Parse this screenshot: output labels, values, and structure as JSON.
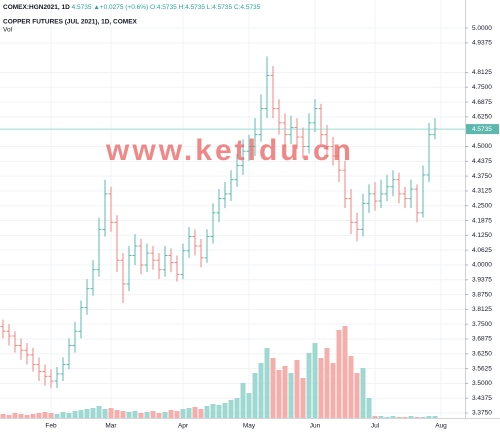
{
  "chart_data": {
    "type": "ohlc",
    "symbol": "COMEX:HGN2021, 1D",
    "last_text": "4.5735",
    "change_text": "▲+0.0275 (+0.6%)",
    "ohlc_text": [
      "O:4.5735",
      "H:4.5735",
      "L:4.5735",
      "C:4.5735"
    ],
    "title": "COPPER FUTURES (JUL 2021), 1D, COMEX",
    "subtitle": "Vol",
    "watermark": "www.ketldu.cn",
    "categories": [
      null,
      null,
      null,
      null,
      null,
      null,
      null,
      null,
      "Feb",
      null,
      null,
      null,
      null,
      null,
      null,
      null,
      null,
      null,
      "Mar",
      null,
      null,
      null,
      null,
      null,
      null,
      null,
      null,
      null,
      null,
      null,
      "Apr",
      null,
      null,
      null,
      null,
      null,
      null,
      null,
      null,
      null,
      null,
      "May",
      null,
      null,
      null,
      null,
      null,
      null,
      null,
      null,
      null,
      null,
      "Jun",
      null,
      null,
      null,
      null,
      null,
      null,
      null,
      null,
      null,
      "Jul",
      null,
      null,
      null,
      null,
      null,
      null,
      null,
      null,
      null,
      null,
      "Aug"
    ],
    "open": [
      3.74,
      3.72,
      3.7,
      3.66,
      3.64,
      3.62,
      3.58,
      3.55,
      3.53,
      3.51,
      3.54,
      3.58,
      3.66,
      3.72,
      3.82,
      3.9,
      3.98,
      4.15,
      4.3,
      4.18,
      4.02,
      3.92,
      4.04,
      4.08,
      4.0,
      4.05,
      4.02,
      3.98,
      4.04,
      4.01,
      3.96,
      4.06,
      4.12,
      4.08,
      4.03,
      4.12,
      4.22,
      4.28,
      4.3,
      4.36,
      4.42,
      4.48,
      4.5,
      4.55,
      4.66,
      4.8,
      4.66,
      4.6,
      4.55,
      4.58,
      4.54,
      4.5,
      4.6,
      4.66,
      4.55,
      4.5,
      4.46,
      4.4,
      4.28,
      4.18,
      4.15,
      4.26,
      4.3,
      4.27,
      4.3,
      4.33,
      4.36,
      4.3,
      4.28,
      4.32,
      4.22,
      4.38,
      4.55,
      null
    ],
    "high": [
      3.77,
      3.75,
      3.72,
      3.69,
      3.67,
      3.65,
      3.61,
      3.58,
      3.56,
      3.57,
      3.61,
      3.69,
      3.76,
      3.85,
      3.94,
      4.02,
      4.2,
      4.36,
      4.33,
      4.21,
      4.05,
      4.08,
      4.13,
      4.11,
      4.09,
      4.08,
      4.05,
      4.08,
      4.07,
      4.04,
      4.09,
      4.16,
      4.15,
      4.11,
      4.15,
      4.26,
      4.32,
      4.35,
      4.4,
      4.47,
      4.53,
      4.55,
      4.62,
      4.72,
      4.88,
      4.84,
      4.7,
      4.64,
      4.63,
      4.62,
      4.58,
      4.64,
      4.7,
      4.68,
      4.59,
      4.54,
      4.5,
      4.44,
      4.32,
      4.22,
      4.3,
      4.34,
      4.35,
      4.36,
      4.38,
      4.4,
      4.39,
      4.33,
      4.36,
      4.34,
      4.42,
      4.6,
      4.62,
      null
    ],
    "low": [
      3.69,
      3.66,
      3.63,
      3.6,
      3.58,
      3.55,
      3.51,
      3.49,
      3.48,
      3.48,
      3.51,
      3.56,
      3.63,
      3.69,
      3.79,
      3.87,
      3.95,
      4.12,
      4.14,
      3.97,
      3.84,
      3.89,
      4.0,
      3.96,
      3.97,
      3.98,
      3.94,
      3.95,
      3.97,
      3.93,
      3.94,
      4.03,
      4.04,
      3.99,
      4.01,
      4.09,
      4.18,
      4.24,
      4.27,
      4.33,
      4.38,
      4.44,
      4.46,
      4.52,
      4.62,
      4.62,
      4.55,
      4.5,
      4.51,
      4.49,
      4.45,
      4.47,
      4.56,
      4.51,
      4.46,
      4.42,
      4.35,
      4.24,
      4.13,
      4.1,
      4.12,
      4.22,
      4.23,
      4.24,
      4.27,
      4.29,
      4.26,
      4.24,
      4.24,
      4.18,
      4.2,
      4.35,
      4.53,
      null
    ],
    "close": [
      3.72,
      3.7,
      3.66,
      3.64,
      3.62,
      3.58,
      3.55,
      3.53,
      3.51,
      3.54,
      3.58,
      3.66,
      3.72,
      3.82,
      3.9,
      3.98,
      4.15,
      4.3,
      4.18,
      4.02,
      3.92,
      4.04,
      4.08,
      4.0,
      4.05,
      4.02,
      3.98,
      4.04,
      4.01,
      3.96,
      4.06,
      4.12,
      4.08,
      4.03,
      4.12,
      4.22,
      4.28,
      4.3,
      4.36,
      4.42,
      4.48,
      4.5,
      4.55,
      4.66,
      4.8,
      4.66,
      4.6,
      4.55,
      4.58,
      4.54,
      4.5,
      4.6,
      4.66,
      4.55,
      4.5,
      4.46,
      4.4,
      4.28,
      4.18,
      4.15,
      4.26,
      4.3,
      4.27,
      4.3,
      4.33,
      4.36,
      4.3,
      4.28,
      4.32,
      4.22,
      4.38,
      4.55,
      4.5735,
      null
    ],
    "volume": [
      4,
      3,
      5,
      4,
      3,
      4,
      5,
      6,
      5,
      4,
      6,
      5,
      7,
      8,
      9,
      10,
      12,
      9,
      10,
      8,
      7,
      6,
      7,
      5,
      6,
      7,
      5,
      6,
      8,
      7,
      9,
      10,
      11,
      9,
      12,
      14,
      13,
      15,
      18,
      20,
      35,
      25,
      45,
      55,
      70,
      60,
      48,
      52,
      45,
      58,
      40,
      65,
      75,
      60,
      70,
      55,
      88,
      92,
      62,
      45,
      50,
      20,
      2,
      2,
      1,
      2,
      1,
      1,
      2,
      1,
      1,
      2,
      2,
      null
    ],
    "vlim": [
      0,
      100
    ],
    "ylim": [
      3.354,
      5.034
    ],
    "yticks": [
      {
        "value": 5.0,
        "label": "5.0000"
      },
      {
        "value": 4.9375,
        "label": "4.9375"
      },
      {
        "value": 4.8125,
        "label": "4.8125"
      },
      {
        "value": 4.75,
        "label": "4.7500"
      },
      {
        "value": 4.6875,
        "label": "4.6875"
      },
      {
        "value": 4.625,
        "label": "4.6250"
      },
      {
        "value": 4.5,
        "label": "4.5000"
      },
      {
        "value": 4.4375,
        "label": "4.4375"
      },
      {
        "value": 4.375,
        "label": "4.3750"
      },
      {
        "value": 4.3125,
        "label": "4.3125"
      },
      {
        "value": 4.25,
        "label": "4.2500"
      },
      {
        "value": 4.1875,
        "label": "4.1875"
      },
      {
        "value": 4.125,
        "label": "4.1250"
      },
      {
        "value": 4.0625,
        "label": "4.0625"
      },
      {
        "value": 4.0,
        "label": "4.0000"
      },
      {
        "value": 3.9375,
        "label": "3.9375"
      },
      {
        "value": 3.875,
        "label": "3.8750"
      },
      {
        "value": 3.8125,
        "label": "3.8125"
      },
      {
        "value": 3.75,
        "label": "3.7500"
      },
      {
        "value": 3.6875,
        "label": "3.6875"
      },
      {
        "value": 3.625,
        "label": "3.6250"
      },
      {
        "value": 3.5625,
        "label": "3.5625"
      },
      {
        "value": 3.5,
        "label": "3.5000"
      },
      {
        "value": 3.4375,
        "label": "3.4375"
      },
      {
        "value": 3.375,
        "label": "3.3750"
      }
    ],
    "last_price": {
      "value": 4.5735,
      "label": "4.5735"
    },
    "up_color": "#5cb8ae",
    "down_color": "#ef8480",
    "volume_up_color": "#9fd8d1",
    "volume_down_color": "#f4aeab",
    "grid": true
  }
}
